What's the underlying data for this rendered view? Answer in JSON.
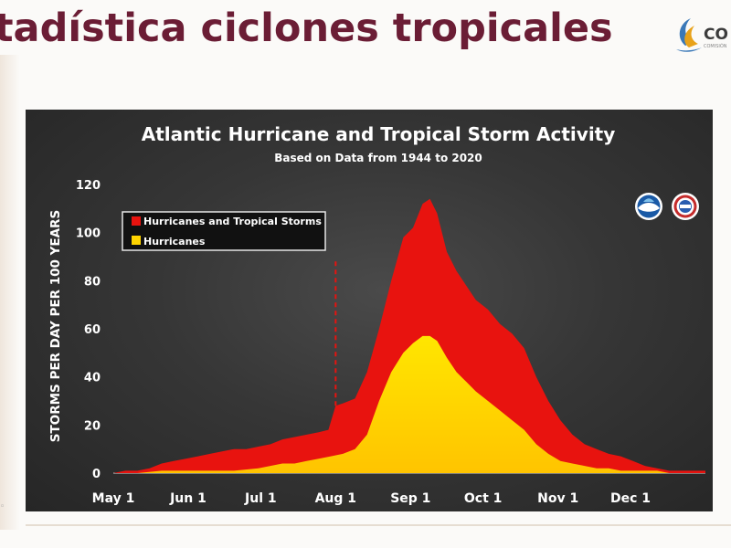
{
  "slide": {
    "title": "tadística ciclones tropicales",
    "logo_text": "CO",
    "logo_subtext": "COMISIÓN"
  },
  "colors": {
    "title": "#6b1d35",
    "all_storms": "#e8130f",
    "hurricanes": "#ffd400",
    "background": "#333333"
  },
  "chart_data": {
    "type": "area",
    "title": "Atlantic Hurricane and Tropical Storm Activity",
    "subtitle": "Based on Data from 1944 to 2020",
    "ylabel": "STORMS PER DAY PER 100 YEARS",
    "xlabel": "",
    "ylim": [
      0,
      120
    ],
    "yticks": [
      "0",
      "20",
      "40",
      "60",
      "80",
      "100",
      "120"
    ],
    "xticks": [
      {
        "label": "May 1",
        "day": 0
      },
      {
        "label": "Jun 1",
        "day": 31
      },
      {
        "label": "Jul 1",
        "day": 61
      },
      {
        "label": "Aug 1",
        "day": 92
      },
      {
        "label": "Sep 1",
        "day": 123
      },
      {
        "label": "Oct 1",
        "day": 153
      },
      {
        "label": "Nov 1",
        "day": 184
      },
      {
        "label": "Dec 1",
        "day": 214
      }
    ],
    "xlim": [
      0,
      245
    ],
    "legend_position": "top-left",
    "grid": false,
    "annotation": "dashed marker at Aug 1",
    "series": [
      {
        "name": "Hurricanes and Tropical Storms",
        "color": "#e8130f",
        "x": [
          0,
          5,
          10,
          15,
          20,
          25,
          30,
          35,
          40,
          45,
          50,
          55,
          60,
          65,
          70,
          75,
          80,
          85,
          89,
          92,
          95,
          100,
          105,
          110,
          115,
          120,
          124,
          128,
          131,
          134,
          138,
          142,
          146,
          150,
          155,
          160,
          165,
          170,
          175,
          180,
          185,
          190,
          195,
          200,
          205,
          210,
          215,
          220,
          225,
          230,
          235,
          240,
          245
        ],
        "y": [
          0,
          1,
          1,
          2,
          4,
          5,
          6,
          7,
          8,
          9,
          10,
          10,
          11,
          12,
          14,
          15,
          16,
          17,
          18,
          28,
          29,
          31,
          42,
          60,
          80,
          98,
          102,
          112,
          114,
          108,
          92,
          84,
          78,
          72,
          68,
          62,
          58,
          52,
          40,
          30,
          22,
          16,
          12,
          10,
          8,
          7,
          5,
          3,
          2,
          1,
          1,
          1,
          1
        ]
      },
      {
        "name": "Hurricanes",
        "color": "#ffd400",
        "x": [
          0,
          10,
          20,
          30,
          40,
          50,
          60,
          65,
          70,
          75,
          80,
          85,
          90,
          95,
          100,
          105,
          110,
          115,
          120,
          124,
          128,
          131,
          134,
          138,
          142,
          146,
          150,
          155,
          160,
          165,
          170,
          175,
          180,
          185,
          190,
          195,
          200,
          205,
          210,
          215,
          220,
          225,
          230,
          235,
          240,
          245
        ],
        "y": [
          0,
          0,
          1,
          1,
          1,
          1,
          2,
          3,
          4,
          4,
          5,
          6,
          7,
          8,
          10,
          16,
          30,
          42,
          50,
          54,
          57,
          57,
          55,
          48,
          42,
          38,
          34,
          30,
          26,
          22,
          18,
          12,
          8,
          5,
          4,
          3,
          2,
          2,
          1,
          1,
          1,
          1,
          0,
          0,
          0,
          0
        ]
      }
    ]
  }
}
